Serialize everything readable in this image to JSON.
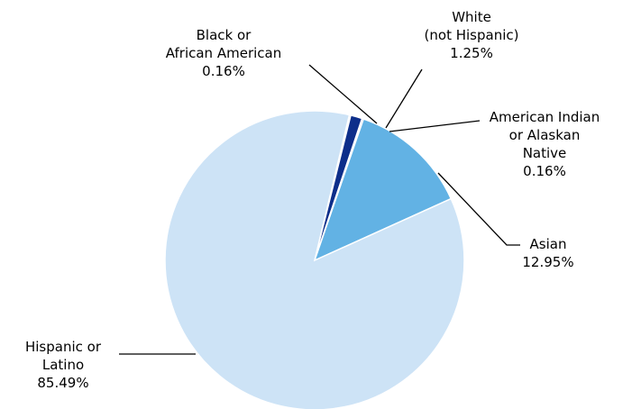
{
  "chart_data": {
    "type": "pie",
    "title": "",
    "slices": [
      {
        "label": "Black or African American",
        "label_lines": [
          "Black or",
          "African American"
        ],
        "value_text": "0.16%",
        "value": 0.16,
        "color": "#1f3a82"
      },
      {
        "label": "White (not Hispanic)",
        "label_lines": [
          "White",
          "(not Hispanic)"
        ],
        "value_text": "1.25%",
        "value": 1.25,
        "color": "#0d2e8a"
      },
      {
        "label": "American Indian or Alaskan Native",
        "label_lines": [
          "American Indian",
          "or Alaskan",
          "Native"
        ],
        "value_text": "0.16%",
        "value": 0.16,
        "color": "#3f6fbf"
      },
      {
        "label": "Asian",
        "label_lines": [
          "Asian"
        ],
        "value_text": "12.95%",
        "value": 12.95,
        "color": "#62b2e4"
      },
      {
        "label": "Hispanic or Latino",
        "label_lines": [
          "Hispanic or",
          "Latino"
        ],
        "value_text": "85.49%",
        "value": 85.49,
        "color": "#cde3f6"
      }
    ]
  }
}
